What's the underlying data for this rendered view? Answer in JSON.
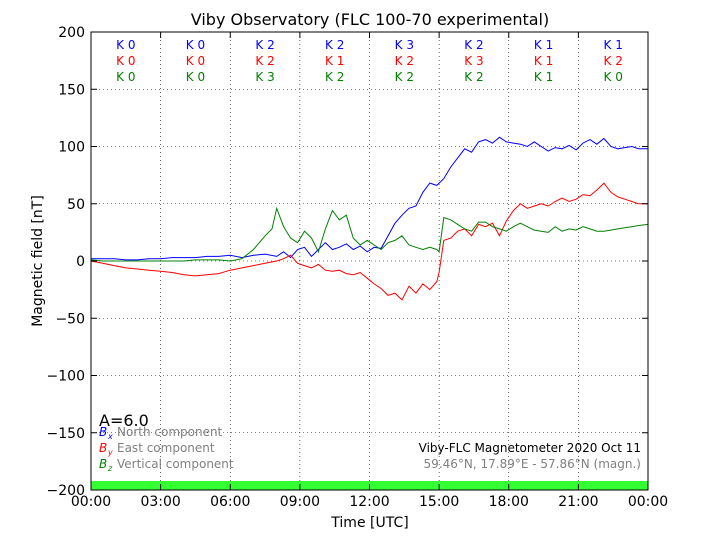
{
  "chart_data": {
    "type": "line",
    "title": "Viby Observatory (FLC 100-70 experimental)",
    "xlabel": "Time [UTC]",
    "ylabel": "Magnetic field [nT]",
    "xlim": [
      0,
      24
    ],
    "ylim": [
      -200,
      200
    ],
    "x_ticks": [
      {
        "value": 0,
        "label": "00:00"
      },
      {
        "value": 3,
        "label": "03:00"
      },
      {
        "value": 6,
        "label": "06:00"
      },
      {
        "value": 9,
        "label": "09:00"
      },
      {
        "value": 12,
        "label": "12:00"
      },
      {
        "value": 15,
        "label": "15:00"
      },
      {
        "value": 18,
        "label": "18:00"
      },
      {
        "value": 21,
        "label": "21:00"
      },
      {
        "value": 24,
        "label": "00:00"
      }
    ],
    "y_ticks": [
      {
        "value": 200,
        "label": "200"
      },
      {
        "value": 150,
        "label": "150"
      },
      {
        "value": 100,
        "label": "100"
      },
      {
        "value": 50,
        "label": "50"
      },
      {
        "value": 0,
        "label": "0"
      },
      {
        "value": -50,
        "label": "−50"
      },
      {
        "value": -100,
        "label": "−100"
      },
      {
        "value": -150,
        "label": "−150"
      },
      {
        "value": -200,
        "label": "−200"
      }
    ],
    "grid": true,
    "k_index_intervals": [
      1.5,
      4.5,
      7.5,
      10.5,
      13.5,
      16.5,
      19.5,
      22.5
    ],
    "k_index_rows": [
      {
        "color": "#0000ff",
        "labels": [
          "K 0",
          "K 0",
          "K 2",
          "K 2",
          "K 3",
          "K 2",
          "K 1",
          "K 1"
        ]
      },
      {
        "color": "#ff0000",
        "labels": [
          "K 0",
          "K 0",
          "K 2",
          "K 1",
          "K 2",
          "K 3",
          "K 1",
          "K 2"
        ]
      },
      {
        "color": "#008000",
        "labels": [
          "K 0",
          "K 0",
          "K 3",
          "K 2",
          "K 2",
          "K 2",
          "K 1",
          "K 0"
        ]
      }
    ],
    "series": [
      {
        "name": "North component",
        "symbol": "B",
        "subscript": "x",
        "color": "#0000ff",
        "x": [
          0,
          0.5,
          1,
          1.5,
          2,
          2.5,
          3,
          3.5,
          4,
          4.5,
          5,
          5.5,
          6,
          6.5,
          7,
          7.5,
          8,
          8.3,
          8.6,
          8.9,
          9.2,
          9.5,
          9.8,
          10.1,
          10.4,
          10.7,
          11,
          11.3,
          11.6,
          11.9,
          12.2,
          12.5,
          12.8,
          13.1,
          13.4,
          13.7,
          14,
          14.3,
          14.6,
          14.9,
          15.2,
          15.5,
          15.8,
          16.1,
          16.4,
          16.7,
          17,
          17.3,
          17.6,
          17.9,
          18.2,
          18.5,
          18.8,
          19.1,
          19.4,
          19.7,
          20,
          20.3,
          20.6,
          20.9,
          21.2,
          21.5,
          21.8,
          22.1,
          22.4,
          22.7,
          23,
          23.3,
          23.6,
          24
        ],
        "y": [
          2,
          2,
          2,
          1,
          1,
          2,
          2,
          3,
          3,
          3,
          4,
          4,
          5,
          3,
          5,
          6,
          4,
          8,
          3,
          10,
          12,
          4,
          10,
          16,
          10,
          12,
          15,
          10,
          13,
          8,
          12,
          11,
          22,
          33,
          40,
          46,
          48,
          60,
          68,
          66,
          72,
          82,
          90,
          98,
          95,
          104,
          106,
          103,
          108,
          104,
          103,
          102,
          100,
          104,
          100,
          96,
          99,
          98,
          101,
          97,
          103,
          106,
          102,
          107,
          100,
          98,
          99,
          100,
          98,
          98
        ]
      },
      {
        "name": "East component",
        "symbol": "B",
        "subscript": "y",
        "color": "#ff0000",
        "x": [
          0,
          0.5,
          1,
          1.5,
          2,
          2.5,
          3,
          3.5,
          4,
          4.5,
          5,
          5.5,
          6,
          6.5,
          7,
          7.5,
          8,
          8.3,
          8.6,
          8.9,
          9.2,
          9.5,
          9.8,
          10.1,
          10.4,
          10.7,
          11,
          11.3,
          11.6,
          11.9,
          12.2,
          12.5,
          12.8,
          13.1,
          13.4,
          13.7,
          14,
          14.3,
          14.6,
          14.9,
          15,
          15.2,
          15.5,
          15.8,
          16.1,
          16.4,
          16.7,
          17,
          17.3,
          17.6,
          17.9,
          18.2,
          18.5,
          18.8,
          19.1,
          19.4,
          19.7,
          20,
          20.3,
          20.6,
          20.9,
          21.2,
          21.5,
          21.8,
          22.1,
          22.4,
          22.7,
          23,
          23.3,
          23.6,
          24
        ],
        "y": [
          0,
          -2,
          -4,
          -6,
          -7,
          -8,
          -9,
          -10,
          -12,
          -13,
          -12,
          -11,
          -8,
          -6,
          -4,
          -2,
          0,
          2,
          5,
          -2,
          -4,
          -6,
          -3,
          -8,
          -9,
          -8,
          -11,
          -12,
          -10,
          -15,
          -20,
          -24,
          -30,
          -28,
          -34,
          -22,
          -28,
          -20,
          -25,
          -18,
          -10,
          18,
          20,
          26,
          28,
          22,
          32,
          30,
          33,
          22,
          35,
          44,
          50,
          46,
          48,
          50,
          48,
          52,
          55,
          52,
          54,
          58,
          57,
          62,
          68,
          60,
          56,
          54,
          52,
          50,
          50
        ]
      },
      {
        "name": "Vertical component",
        "symbol": "B",
        "subscript": "z",
        "color": "#008000",
        "x": [
          0,
          0.5,
          1,
          1.5,
          2,
          2.5,
          3,
          3.5,
          4,
          4.5,
          5,
          5.5,
          6,
          6.5,
          7,
          7.5,
          7.8,
          8,
          8.3,
          8.6,
          8.9,
          9.2,
          9.5,
          9.8,
          10.1,
          10.4,
          10.7,
          11,
          11.3,
          11.6,
          11.9,
          12.2,
          12.5,
          12.8,
          13.1,
          13.4,
          13.7,
          14,
          14.3,
          14.6,
          14.9,
          15,
          15.2,
          15.5,
          15.8,
          16.1,
          16.4,
          16.7,
          17,
          17.3,
          17.6,
          17.9,
          18.2,
          18.5,
          18.8,
          19.1,
          19.4,
          19.7,
          20,
          20.3,
          20.6,
          20.9,
          21.2,
          21.5,
          21.8,
          22.1,
          22.4,
          22.7,
          23,
          23.3,
          23.6,
          24
        ],
        "y": [
          1,
          0,
          0,
          0,
          0,
          0,
          0,
          0,
          0,
          1,
          1,
          1,
          0,
          2,
          10,
          22,
          28,
          46,
          30,
          20,
          16,
          26,
          20,
          8,
          28,
          44,
          36,
          40,
          20,
          14,
          18,
          14,
          10,
          16,
          18,
          22,
          14,
          12,
          10,
          12,
          10,
          8,
          38,
          36,
          32,
          28,
          26,
          34,
          34,
          30,
          28,
          26,
          30,
          33,
          30,
          27,
          26,
          25,
          30,
          26,
          28,
          27,
          30,
          28,
          26,
          26,
          27,
          28,
          29,
          30,
          31,
          32
        ]
      }
    ],
    "amplitude_label": "A=6.0",
    "station_caption": "Viby-FLC Magnetometer 2020 Oct 11",
    "coords_caption": "59.46°N, 17.89°E - 57.86°N (magn.)",
    "status_bar_color": "#33ff33"
  }
}
